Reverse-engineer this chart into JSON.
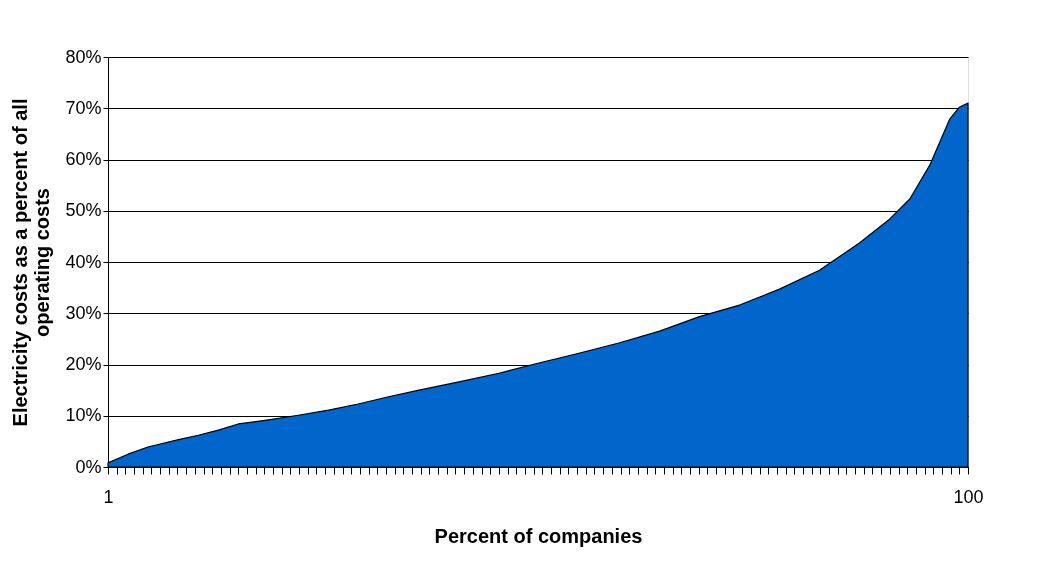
{
  "chart_data": {
    "type": "area",
    "xlabel": "Percent of companies",
    "ylabel": "Electricity costs as a percent of all operating costs",
    "x": [
      1,
      3.3,
      5.6,
      9,
      11.4,
      13.7,
      16,
      19.5,
      22.9,
      26.4,
      29.8,
      33.3,
      36.8,
      41.4,
      46,
      50.6,
      55.2,
      59.8,
      64.5,
      69,
      73.7,
      78.3,
      82.9,
      87.5,
      91,
      93.3,
      95.6,
      97.9,
      99,
      100
    ],
    "series": [
      {
        "color": "#0066cc",
        "values": [
          0.8,
          2.5,
          3.9,
          5.3,
          6.2,
          7.2,
          8.4,
          9.2,
          10.1,
          11.1,
          12.3,
          13.7,
          15,
          16.6,
          18.3,
          20.3,
          22.2,
          24.2,
          26.5,
          29.3,
          31.6,
          34.7,
          38.4,
          43.7,
          48.4,
          52.3,
          58.9,
          67.9,
          70.2,
          71
        ]
      }
    ],
    "xlim": [
      1,
      100
    ],
    "xticks": [
      1,
      100
    ],
    "ylim": [
      0,
      80
    ],
    "yticks": [
      {
        "value": 0,
        "label": "0%"
      },
      {
        "value": 10,
        "label": "10%"
      },
      {
        "value": 20,
        "label": "20%"
      },
      {
        "value": 30,
        "label": "30%"
      },
      {
        "value": 40,
        "label": "40%"
      },
      {
        "value": 50,
        "label": "50%"
      },
      {
        "value": 60,
        "label": "60%"
      },
      {
        "value": 70,
        "label": "70%"
      },
      {
        "value": 80,
        "label": "80%"
      }
    ],
    "grid": "y",
    "legend": false
  }
}
